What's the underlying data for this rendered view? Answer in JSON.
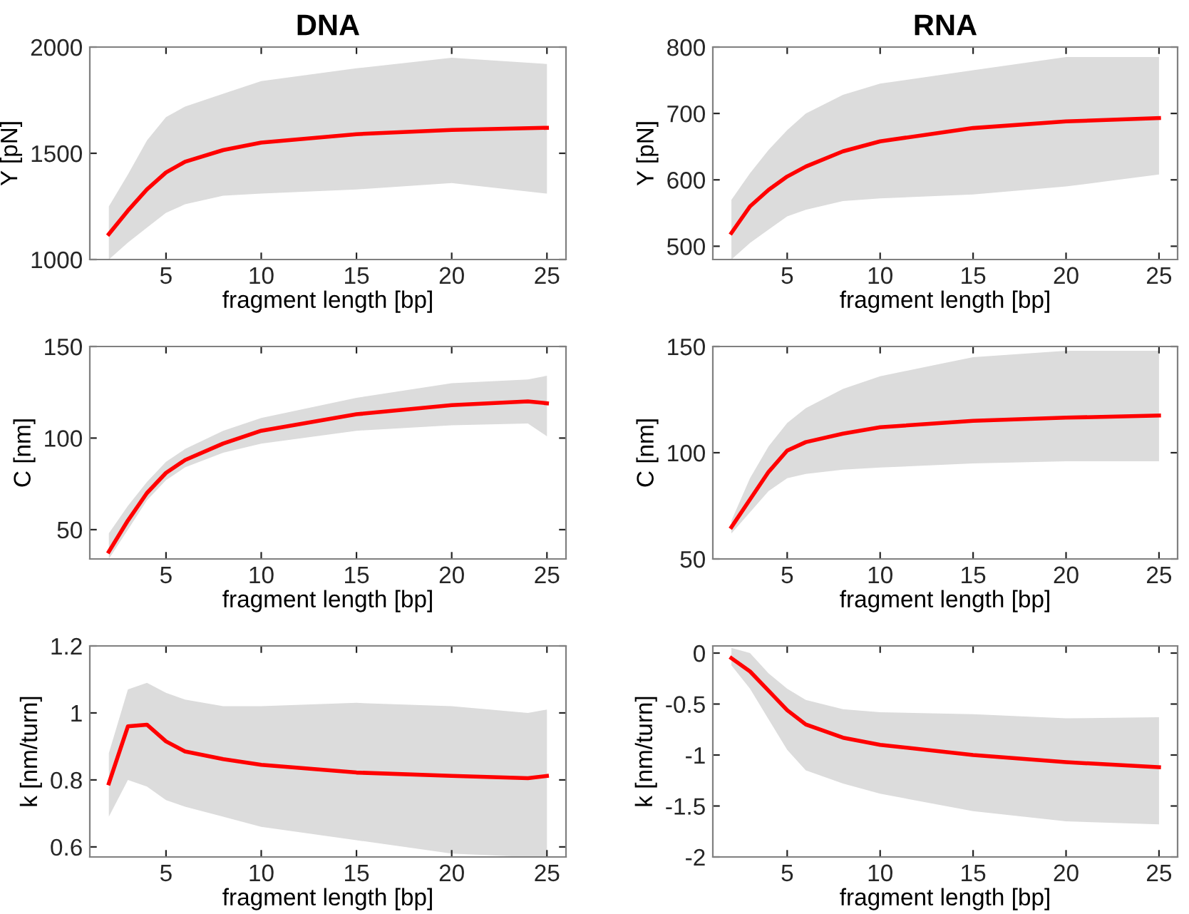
{
  "chart_data": [
    {
      "type": "line",
      "title": "DNA",
      "xlabel": "fragment length [bp]",
      "ylabel": "Y [pN]",
      "xlim": [
        1,
        26
      ],
      "xticks": [
        5,
        10,
        15,
        20,
        25
      ],
      "ylim": [
        1000,
        2000
      ],
      "yticks": [
        1000,
        1500,
        2000
      ],
      "grid": false,
      "legend": false,
      "marker": "none",
      "line_style": "solid",
      "series": [
        {
          "color": "#ff0000",
          "x": [
            2,
            3,
            4,
            5,
            6,
            8,
            10,
            15,
            20,
            25
          ],
          "values": [
            1120,
            1230,
            1330,
            1410,
            1460,
            1515,
            1550,
            1590,
            1610,
            1620
          ],
          "lower": [
            1000,
            1080,
            1150,
            1220,
            1260,
            1300,
            1310,
            1330,
            1360,
            1310
          ],
          "upper": [
            1250,
            1400,
            1560,
            1670,
            1720,
            1780,
            1840,
            1900,
            1950,
            1920
          ]
        }
      ]
    },
    {
      "type": "line",
      "title": "RNA",
      "xlabel": "fragment length [bp]",
      "ylabel": "Y [pN]",
      "xlim": [
        1,
        26
      ],
      "xticks": [
        5,
        10,
        15,
        20,
        25
      ],
      "ylim": [
        480,
        800
      ],
      "yticks": [
        500,
        600,
        700,
        800
      ],
      "grid": false,
      "legend": false,
      "marker": "none",
      "line_style": "solid",
      "series": [
        {
          "color": "#ff0000",
          "x": [
            2,
            3,
            4,
            5,
            6,
            8,
            10,
            15,
            20,
            25
          ],
          "values": [
            520,
            560,
            585,
            605,
            620,
            643,
            658,
            678,
            688,
            693
          ],
          "lower": [
            480,
            505,
            525,
            545,
            555,
            568,
            572,
            578,
            590,
            608
          ],
          "upper": [
            570,
            610,
            645,
            675,
            700,
            728,
            745,
            765,
            785,
            785
          ]
        }
      ]
    },
    {
      "type": "line",
      "xlabel": "fragment length [bp]",
      "ylabel": "C [nm]",
      "xlim": [
        1,
        26
      ],
      "xticks": [
        5,
        10,
        15,
        20,
        25
      ],
      "ylim": [
        34,
        150
      ],
      "yticks": [
        50,
        100,
        150
      ],
      "grid": false,
      "legend": false,
      "marker": "none",
      "line_style": "solid",
      "series": [
        {
          "color": "#ff0000",
          "x": [
            2,
            3,
            4,
            5,
            6,
            8,
            10,
            15,
            20,
            24,
            25
          ],
          "values": [
            38,
            55,
            70,
            81,
            88,
            97,
            104,
            113,
            118,
            120,
            119
          ],
          "lower": [
            34,
            50,
            66,
            77,
            84,
            92,
            97,
            104,
            107,
            108,
            101
          ],
          "upper": [
            48,
            63,
            76,
            87,
            94,
            104,
            111,
            122,
            130,
            132,
            134
          ]
        }
      ]
    },
    {
      "type": "line",
      "xlabel": "fragment length [bp]",
      "ylabel": "C [nm]",
      "xlim": [
        1,
        26
      ],
      "xticks": [
        5,
        10,
        15,
        20,
        25
      ],
      "ylim": [
        50,
        150
      ],
      "yticks": [
        50,
        100,
        150
      ],
      "grid": false,
      "legend": false,
      "marker": "none",
      "line_style": "solid",
      "series": [
        {
          "color": "#ff0000",
          "x": [
            2,
            3,
            4,
            5,
            6,
            8,
            10,
            15,
            20,
            25
          ],
          "values": [
            65,
            78,
            91,
            101,
            105,
            109,
            112,
            115,
            116.5,
            117.5
          ],
          "lower": [
            62,
            72,
            82,
            88,
            90,
            92,
            93,
            95,
            96,
            96
          ],
          "upper": [
            68,
            88,
            103,
            114,
            121,
            130,
            136,
            145,
            148,
            148
          ]
        }
      ]
    },
    {
      "type": "line",
      "xlabel": "fragment length [bp]",
      "ylabel": "k [nm/turn]",
      "xlim": [
        1,
        26
      ],
      "xticks": [
        5,
        10,
        15,
        20,
        25
      ],
      "ylim": [
        0.57,
        1.2
      ],
      "yticks": [
        0.6,
        0.8,
        1,
        1.2
      ],
      "grid": false,
      "legend": false,
      "marker": "none",
      "line_style": "solid",
      "series": [
        {
          "color": "#ff0000",
          "x": [
            2,
            3,
            4,
            5,
            6,
            8,
            10,
            15,
            20,
            24,
            25
          ],
          "values": [
            0.79,
            0.96,
            0.965,
            0.915,
            0.885,
            0.862,
            0.845,
            0.822,
            0.812,
            0.805,
            0.812
          ],
          "lower": [
            0.69,
            0.8,
            0.78,
            0.74,
            0.72,
            0.69,
            0.66,
            0.62,
            0.58,
            0.57,
            0.57
          ],
          "upper": [
            0.88,
            1.07,
            1.09,
            1.06,
            1.04,
            1.02,
            1.02,
            1.03,
            1.02,
            1.0,
            1.01
          ]
        }
      ]
    },
    {
      "type": "line",
      "xlabel": "fragment length [bp]",
      "ylabel": "k [nm/turn]",
      "xlim": [
        1,
        26
      ],
      "xticks": [
        5,
        10,
        15,
        20,
        25
      ],
      "ylim": [
        -2,
        0.07
      ],
      "yticks": [
        {
          "value": 0,
          "label": "0"
        },
        {
          "value": -0.5,
          "label": "-0.5"
        },
        {
          "value": -1,
          "label": "-1"
        },
        {
          "value": -1.5,
          "label": "-1.5"
        },
        {
          "value": -2,
          "label": "-2"
        }
      ],
      "grid": false,
      "legend": false,
      "marker": "none",
      "line_style": "solid",
      "series": [
        {
          "color": "#ff0000",
          "x": [
            2,
            3,
            4,
            5,
            6,
            8,
            10,
            15,
            20,
            25
          ],
          "values": [
            -0.05,
            -0.18,
            -0.37,
            -0.56,
            -0.7,
            -0.83,
            -0.9,
            -1.0,
            -1.07,
            -1.12
          ],
          "lower": [
            -0.12,
            -0.35,
            -0.65,
            -0.95,
            -1.15,
            -1.28,
            -1.38,
            -1.55,
            -1.65,
            -1.68
          ],
          "upper": [
            0.05,
            0.0,
            -0.2,
            -0.35,
            -0.46,
            -0.55,
            -0.58,
            -0.6,
            -0.64,
            -0.63
          ]
        }
      ]
    }
  ]
}
